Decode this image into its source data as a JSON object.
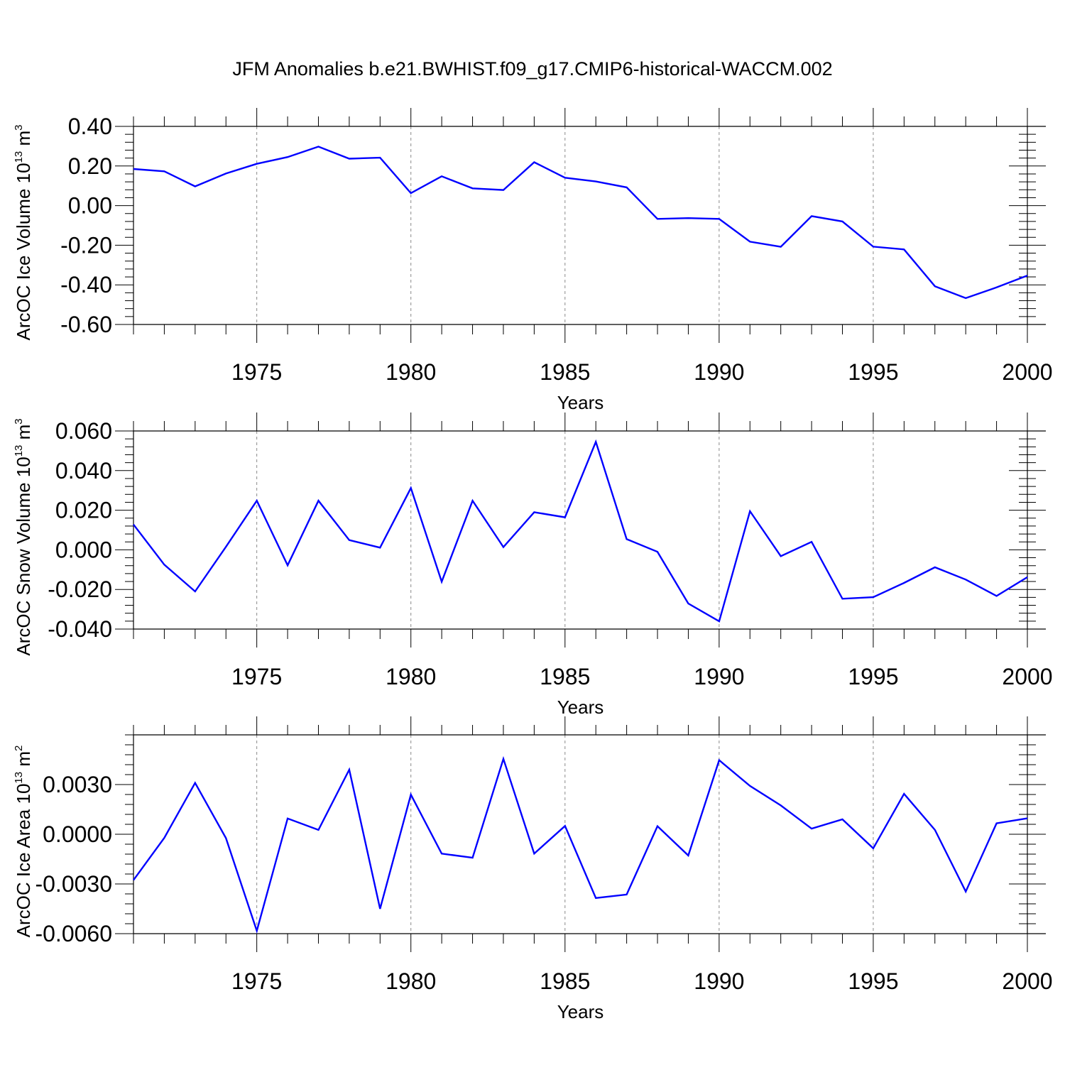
{
  "chart_data": [
    {
      "type": "line",
      "title": "JFM Anomalies b.e21.BWHIST.f09_g17.CMIP6-historical-WACCM.002",
      "xlabel": "Years",
      "ylabel": "ArcOC Ice Volume 10",
      "ylabel_sup": "13",
      "ylabel_unit": "m",
      "ylabel_unit_sup": "3",
      "series_color": "#0000ff",
      "xlim": [
        1971,
        2000
      ],
      "ylim": [
        -0.6,
        0.4
      ],
      "x_ticks": [
        1975,
        1980,
        1985,
        1990,
        1995,
        2000
      ],
      "y_ticks": [
        -0.6,
        -0.4,
        -0.2,
        0.0,
        0.2,
        0.4
      ],
      "y_tick_labels": [
        "-0.60",
        "-0.40",
        "-0.20",
        "0.00",
        "0.20",
        "0.40"
      ],
      "grid_x": "dashed",
      "x": [
        1971,
        1972,
        1973,
        1974,
        1975,
        1976,
        1977,
        1978,
        1979,
        1980,
        1981,
        1982,
        1983,
        1984,
        1985,
        1986,
        1987,
        1988,
        1989,
        1990,
        1991,
        1992,
        1993,
        1994,
        1995,
        1996,
        1997,
        1998,
        1999,
        2000
      ],
      "values": [
        0.185,
        0.173,
        0.097,
        0.162,
        0.211,
        0.245,
        0.298,
        0.237,
        0.242,
        0.063,
        0.148,
        0.087,
        0.079,
        0.219,
        0.141,
        0.122,
        0.092,
        -0.067,
        -0.063,
        -0.067,
        -0.182,
        -0.208,
        -0.053,
        -0.08,
        -0.207,
        -0.221,
        -0.407,
        -0.467,
        -0.413,
        -0.353
      ]
    },
    {
      "type": "line",
      "title": "",
      "xlabel": "Years",
      "ylabel": "ArcOC Snow Volume 10",
      "ylabel_sup": "13",
      "ylabel_unit": "m",
      "ylabel_unit_sup": "3",
      "series_color": "#0000ff",
      "xlim": [
        1971,
        2000
      ],
      "ylim": [
        -0.04,
        0.06
      ],
      "x_ticks": [
        1975,
        1980,
        1985,
        1990,
        1995,
        2000
      ],
      "y_ticks": [
        -0.04,
        -0.02,
        0.0,
        0.02,
        0.04,
        0.06
      ],
      "y_tick_labels": [
        "-0.040",
        "-0.020",
        "0.000",
        "0.020",
        "0.040",
        "0.060"
      ],
      "grid_x": "dashed",
      "x": [
        1971,
        1972,
        1973,
        1974,
        1975,
        1976,
        1977,
        1978,
        1979,
        1980,
        1981,
        1982,
        1983,
        1984,
        1985,
        1986,
        1987,
        1988,
        1989,
        1990,
        1991,
        1992,
        1993,
        1994,
        1995,
        1996,
        1997,
        1998,
        1999,
        2000
      ],
      "values": [
        0.0128,
        -0.0075,
        -0.021,
        0.0015,
        0.0248,
        -0.0078,
        0.0248,
        0.0049,
        0.0011,
        0.0312,
        -0.0161,
        0.0248,
        0.0014,
        0.019,
        0.0164,
        0.0545,
        0.0054,
        -0.001,
        -0.0271,
        -0.0361,
        0.0195,
        -0.0032,
        0.004,
        -0.0247,
        -0.0239,
        -0.0167,
        -0.0088,
        -0.015,
        -0.0233,
        -0.0138
      ]
    },
    {
      "type": "line",
      "title": "",
      "xlabel": "Years",
      "ylabel": "ArcOC Ice Area 10",
      "ylabel_sup": "13",
      "ylabel_unit": "m",
      "ylabel_unit_sup": "2",
      "series_color": "#0000ff",
      "xlim": [
        1971,
        2000
      ],
      "ylim": [
        -0.006,
        0.006
      ],
      "x_ticks": [
        1975,
        1980,
        1985,
        1990,
        1995,
        2000
      ],
      "y_ticks": [
        -0.006,
        -0.003,
        0.0,
        0.003
      ],
      "y_tick_labels": [
        "-0.0060",
        "-0.0030",
        "0.0000",
        "0.0030"
      ],
      "grid_x": "dashed",
      "x": [
        1971,
        1972,
        1973,
        1974,
        1975,
        1976,
        1977,
        1978,
        1979,
        1980,
        1981,
        1982,
        1983,
        1984,
        1985,
        1986,
        1987,
        1988,
        1989,
        1990,
        1991,
        1992,
        1993,
        1994,
        1995,
        1996,
        1997,
        1998,
        1999,
        2000
      ],
      "values": [
        -0.00277,
        -0.00022,
        0.0031,
        -0.00023,
        -0.00583,
        0.00095,
        0.00026,
        0.0039,
        -0.0045,
        0.00239,
        -0.00117,
        -0.00142,
        0.00455,
        -0.00117,
        0.0005,
        -0.00385,
        -0.00364,
        0.00049,
        -0.00128,
        0.00447,
        0.00292,
        0.00174,
        0.00034,
        0.0009,
        -0.00085,
        0.00244,
        0.00026,
        -0.00346,
        0.00066,
        0.00096
      ]
    }
  ]
}
